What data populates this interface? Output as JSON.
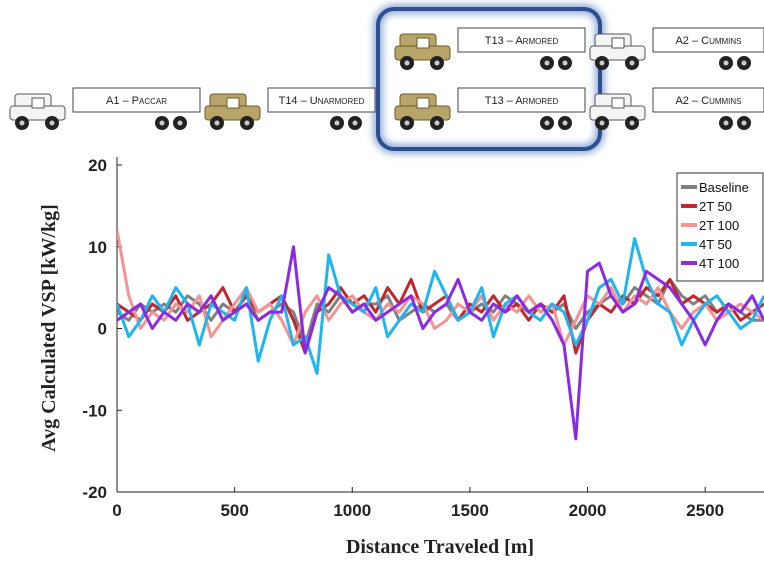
{
  "header": {
    "trucks": [
      "T13 – Armored",
      "A2 – Cummins",
      "A1 – Paccar",
      "T14 – Unarmored",
      "T13 – Armored",
      "A2 – Cummins"
    ]
  },
  "chart_data": {
    "type": "line",
    "x_label": "Distance Traveled [m]",
    "y_label": "Avg Calculated VSP [kW/kg]",
    "x": [
      0,
      50,
      100,
      150,
      200,
      250,
      300,
      350,
      400,
      450,
      500,
      550,
      600,
      650,
      700,
      750,
      800,
      850,
      900,
      950,
      1000,
      1050,
      1100,
      1150,
      1200,
      1250,
      1300,
      1350,
      1400,
      1450,
      1500,
      1550,
      1600,
      1650,
      1700,
      1750,
      1800,
      1850,
      1900,
      1950,
      2000,
      2050,
      2100,
      2150,
      2200,
      2250,
      2300,
      2350,
      2400,
      2450,
      2500,
      2550,
      2600,
      2650,
      2700,
      2750
    ],
    "xlim": [
      0,
      2750
    ],
    "xticks": [
      0,
      500,
      1000,
      1500,
      2000,
      2500
    ],
    "ylim": [
      -20,
      20
    ],
    "yticks": [
      -20,
      -10,
      0,
      10,
      20
    ],
    "legend": "upper right",
    "series": [
      {
        "name": "Baseline",
        "color": "#808080",
        "values": [
          2,
          1,
          3,
          2,
          3,
          2,
          4,
          3,
          1,
          3,
          2,
          4,
          1,
          2,
          3,
          2,
          -2,
          3,
          2,
          4,
          2,
          3,
          3,
          4,
          1,
          2,
          3,
          2,
          3,
          1,
          2,
          3,
          2,
          4,
          3,
          2,
          3,
          2,
          3,
          0,
          2,
          3,
          4,
          3,
          5,
          4,
          3,
          6,
          4,
          3,
          4,
          2,
          3,
          2,
          1,
          1
        ]
      },
      {
        "name": "2T 50",
        "color": "#c0282d",
        "values": [
          3,
          2,
          1,
          3,
          2,
          4,
          1,
          2,
          3,
          5,
          2,
          4,
          2,
          3,
          4,
          1,
          -3,
          2,
          3,
          5,
          3,
          4,
          2,
          5,
          3,
          6,
          2,
          3,
          4,
          1,
          3,
          2,
          4,
          2,
          3,
          1,
          3,
          2,
          4,
          -3,
          1,
          3,
          2,
          4,
          3,
          5,
          4,
          6,
          3,
          4,
          3,
          2,
          3,
          1,
          2,
          3
        ]
      },
      {
        "name": "2T 100",
        "color": "#f59393",
        "values": [
          12,
          4,
          0,
          2,
          1,
          3,
          2,
          4,
          -1,
          1,
          3,
          5,
          2,
          3,
          1,
          -2,
          2,
          4,
          1,
          3,
          4,
          2,
          1,
          3,
          2,
          4,
          3,
          0,
          1,
          3,
          2,
          4,
          1,
          3,
          2,
          4,
          2,
          3,
          -2,
          1,
          4,
          3,
          5,
          2,
          4,
          3,
          5,
          2,
          0,
          2,
          3,
          1,
          2,
          3,
          2,
          1
        ]
      },
      {
        "name": "4T 50",
        "color": "#1fb5f0",
        "values": [
          3,
          -1,
          1,
          4,
          2,
          5,
          3,
          -2,
          3,
          2,
          1,
          5,
          -4,
          1,
          4,
          -2,
          -1,
          -5.5,
          9,
          4,
          3,
          2,
          5,
          -1,
          1,
          3,
          2,
          7,
          4,
          1,
          2,
          5,
          -1,
          3,
          4,
          2,
          1,
          3,
          2,
          -2,
          1,
          5,
          6,
          3,
          11,
          6,
          3,
          2,
          -2,
          1,
          3,
          4,
          2,
          0,
          1,
          4
        ]
      },
      {
        "name": "4T 100",
        "color": "#8a2be2",
        "values": [
          1,
          2,
          3,
          0,
          2,
          1,
          3,
          2,
          4,
          1,
          2,
          3,
          1,
          2,
          2,
          10,
          -3,
          2,
          5,
          4,
          2,
          3,
          1,
          2,
          3,
          4,
          0,
          2,
          3,
          6,
          2,
          1,
          3,
          2,
          4,
          2,
          3,
          1,
          -2,
          -13.5,
          7,
          8,
          4,
          2,
          3,
          7,
          6,
          5,
          3,
          1,
          -2,
          1,
          3,
          2,
          4,
          1
        ]
      }
    ]
  }
}
